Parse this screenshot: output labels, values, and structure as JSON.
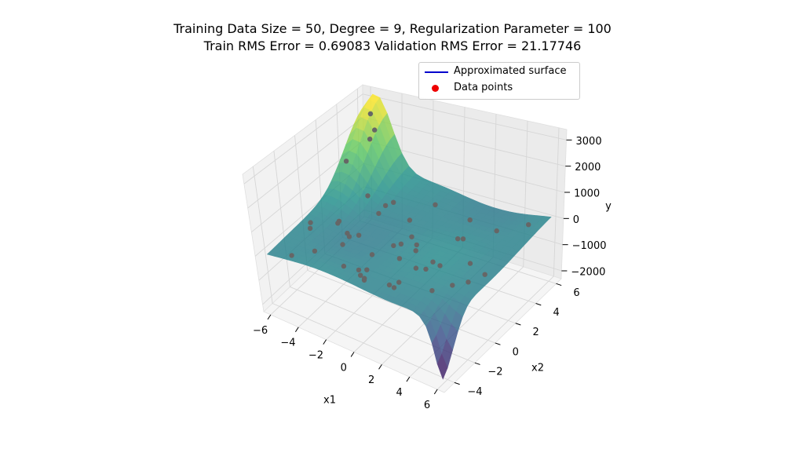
{
  "chart_data": {
    "type": "surface3d",
    "title_line1": "Training Data Size = 50, Degree = 9, Regularization Parameter = 100",
    "title_line2": "Train RMS Error = 0.69083 Validation RMS Error = 21.17746",
    "xlabel": "x1",
    "ylabel": "x2",
    "zlabel": "y",
    "x_ticks": [
      "−6",
      "−4",
      "−2",
      "0",
      "2",
      "4",
      "6"
    ],
    "y_ticks": [
      "−4",
      "−2",
      "0",
      "2",
      "4",
      "6"
    ],
    "z_ticks": [
      "3000",
      "2000",
      "1000",
      "0",
      "−1000",
      "−2000"
    ],
    "xlim": [
      -6.5,
      6.5
    ],
    "ylim": [
      -5,
      6.5
    ],
    "zlim": [
      -2300,
      3400
    ],
    "grid": true,
    "colormap": "viridis",
    "legend_position": "top-right",
    "legend": [
      {
        "label": "Approximated surface",
        "color": "#0000cc",
        "marker": "line"
      },
      {
        "label": "Data points",
        "color": "#ee0000",
        "marker": "dot"
      }
    ],
    "point_color": "#666666"
  }
}
